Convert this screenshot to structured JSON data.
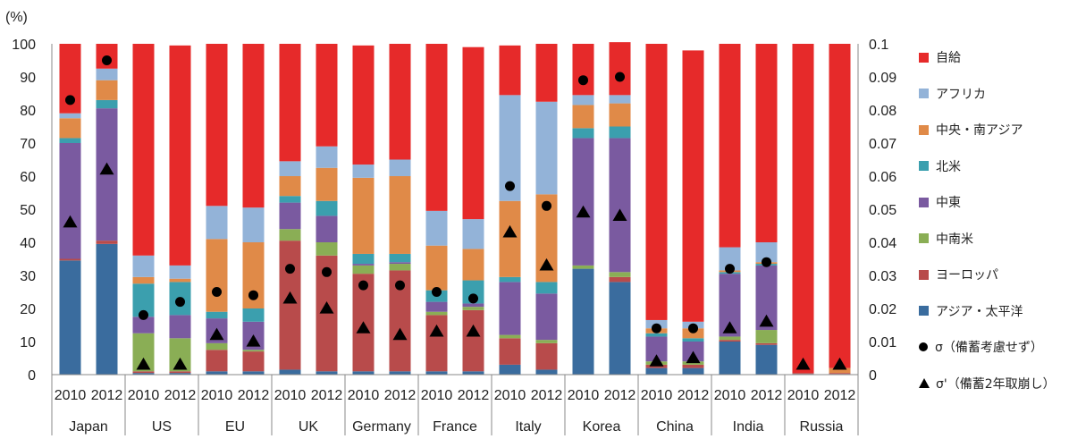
{
  "chart_data": {
    "type": "bar",
    "stacked": true,
    "y_unit_label": "(%)",
    "ylim": [
      0,
      100
    ],
    "y_ticks": [
      "0",
      "10",
      "20",
      "30",
      "40",
      "50",
      "60",
      "70",
      "80",
      "90",
      "100"
    ],
    "y2lim": [
      0,
      0.1
    ],
    "y2_ticks": [
      "0",
      "0.01",
      "0.02",
      "0.03",
      "0.04",
      "0.05",
      "0.06",
      "0.07",
      "0.08",
      "0.09",
      "0.1"
    ],
    "categories": [
      "2010",
      "2012",
      "2010",
      "2012",
      "2010",
      "2012",
      "2010",
      "2012",
      "2010",
      "2012",
      "2010",
      "2012",
      "2010",
      "2012",
      "2010",
      "2012",
      "2010",
      "2012",
      "2010",
      "2012",
      "2010",
      "2012"
    ],
    "groups": [
      "Japan",
      "US",
      "EU",
      "UK",
      "Germany",
      "France",
      "Italy",
      "Korea",
      "China",
      "India",
      "Russia"
    ],
    "series": [
      {
        "name": "アジア・太平洋",
        "color": "#3a6c9e",
        "values": [
          34.5,
          39.5,
          0.5,
          0.5,
          1,
          1,
          1.5,
          1,
          1,
          1,
          1,
          1,
          3,
          1.5,
          32,
          28,
          2,
          2,
          10,
          9,
          0.2,
          0.2
        ]
      },
      {
        "name": "ヨーロッパ",
        "color": "#b84b4b",
        "values": [
          0.5,
          1,
          0.5,
          0.5,
          6.5,
          6,
          39,
          35,
          29.5,
          30.5,
          17,
          18.5,
          8,
          8,
          0,
          1.5,
          1,
          1,
          0.5,
          0.5,
          0.3,
          0.3
        ]
      },
      {
        "name": "中南米",
        "color": "#8aae55",
        "values": [
          0,
          0,
          11.5,
          10,
          2,
          0.5,
          3.5,
          4,
          2.5,
          2,
          1,
          1,
          1,
          1,
          1,
          1.5,
          1,
          1,
          1,
          4,
          0,
          0
        ]
      },
      {
        "name": "中東",
        "color": "#7a5aa0",
        "values": [
          35,
          40,
          5,
          7,
          7.5,
          8.5,
          8,
          8,
          0.5,
          0.5,
          3,
          1,
          16,
          14,
          38.5,
          40.5,
          7.5,
          6,
          19,
          19.5,
          0,
          0
        ]
      },
      {
        "name": "北米",
        "color": "#3b9fae",
        "values": [
          1.5,
          2.5,
          10,
          10,
          2,
          4,
          2,
          4.5,
          3,
          2.5,
          3.5,
          7,
          1.5,
          3.5,
          3,
          3.5,
          1,
          1,
          0.5,
          0.5,
          0,
          0
        ]
      },
      {
        "name": "中央・南アジア",
        "color": "#e08a48",
        "values": [
          6,
          6,
          2,
          1,
          22,
          20,
          6,
          10,
          23,
          23.5,
          13.5,
          9.5,
          23,
          26.5,
          7,
          7,
          1.5,
          3,
          0.5,
          0.5,
          0,
          1.5
        ]
      },
      {
        "name": "アフリカ",
        "color": "#93b3d8",
        "values": [
          1.5,
          3.5,
          6.5,
          4,
          10,
          10.5,
          4.5,
          6.5,
          4,
          5,
          10.5,
          9,
          32,
          28,
          3,
          2.5,
          2.5,
          2,
          7,
          6,
          0,
          0
        ]
      },
      {
        "name": "自給",
        "color": "#e62a2a",
        "values": [
          21,
          7.5,
          64,
          66.5,
          49,
          49.5,
          35.5,
          31,
          36,
          35,
          50.5,
          52,
          15,
          17.5,
          15.5,
          16,
          83.5,
          82,
          61.5,
          60,
          99.5,
          98
        ]
      }
    ],
    "markers": [
      {
        "name": "σ（備蓄考慮せず）",
        "shape": "circle",
        "axis": "right",
        "values": [
          0.083,
          0.095,
          0.018,
          0.022,
          0.025,
          0.024,
          0.032,
          0.031,
          0.027,
          0.027,
          0.025,
          0.023,
          0.057,
          0.051,
          0.089,
          0.09,
          0.014,
          0.014,
          0.032,
          0.034,
          null,
          null
        ]
      },
      {
        "name": "σ'（備蓄2年取崩し）",
        "shape": "triangle",
        "axis": "right",
        "values": [
          0.046,
          0.062,
          0.003,
          0.003,
          0.012,
          0.01,
          0.023,
          0.02,
          0.014,
          0.012,
          0.013,
          0.013,
          0.043,
          0.033,
          0.049,
          0.048,
          0.004,
          0.005,
          0.014,
          0.016,
          0.003,
          0.003
        ]
      }
    ],
    "legend": {
      "position": "right",
      "items": [
        {
          "label": "自給",
          "color": "#e62a2a",
          "kind": "swatch"
        },
        {
          "label": "アフリカ",
          "color": "#93b3d8",
          "kind": "swatch"
        },
        {
          "label": "中央・南アジア",
          "color": "#e08a48",
          "kind": "swatch"
        },
        {
          "label": "北米",
          "color": "#3b9fae",
          "kind": "swatch"
        },
        {
          "label": "中東",
          "color": "#7a5aa0",
          "kind": "swatch"
        },
        {
          "label": "中南米",
          "color": "#8aae55",
          "kind": "swatch"
        },
        {
          "label": "ヨーロッパ",
          "color": "#b84b4b",
          "kind": "swatch"
        },
        {
          "label": "アジア・太平洋",
          "color": "#3a6c9e",
          "kind": "swatch"
        },
        {
          "label": "σ（備蓄考慮せず）",
          "color": "#000000",
          "kind": "circle"
        },
        {
          "label": "σ'（備蓄2年取崩し）",
          "color": "#000000",
          "kind": "triangle"
        }
      ]
    },
    "grid": false
  }
}
